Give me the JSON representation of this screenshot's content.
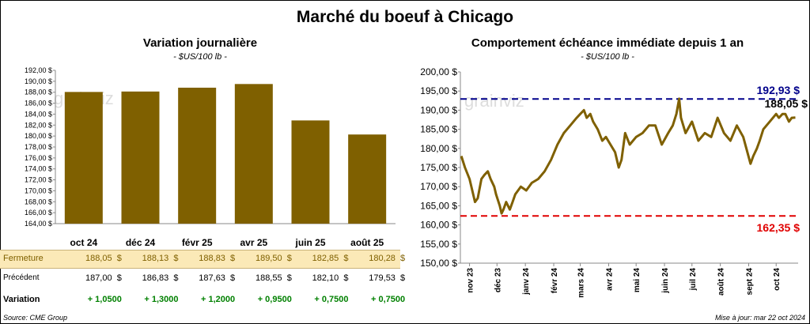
{
  "title": "Marché du boeuf à Chicago",
  "left": {
    "title": "Variation journalière",
    "unit": "- $US/100 lb -",
    "row_labels": {
      "close": "Fermeture",
      "previous": "Précédent",
      "change": "Variation"
    },
    "columns": [
      {
        "label": "oct 24",
        "close": "188,05",
        "previous": "187,00",
        "change": "+ 1,0500"
      },
      {
        "label": "déc 24",
        "close": "188,13",
        "previous": "186,83",
        "change": "+ 1,3000"
      },
      {
        "label": "févr 25",
        "close": "188,83",
        "previous": "187,63",
        "change": "+ 1,2000"
      },
      {
        "label": "avr 25",
        "close": "189,50",
        "previous": "188,55",
        "change": "+ 0,9500"
      },
      {
        "label": "juin 25",
        "close": "182,85",
        "previous": "182,10",
        "change": "+ 0,7500"
      },
      {
        "label": "août 25",
        "close": "180,28",
        "previous": "179,53",
        "change": "+ 0,7500"
      }
    ],
    "currency": "$",
    "source": "Source: CME Group"
  },
  "right": {
    "title": "Comportement  échéance immédiate depuis 1 an",
    "unit": "- $US/100 lb -",
    "update": "Mise à jour: mar 22 oct 2024",
    "max_label": "192,93 $",
    "min_label": "162,35 $",
    "last_label": "188,05 $"
  },
  "watermark": "grainviz",
  "colors": {
    "bar": "#7f6000",
    "line": "#7f6000",
    "max": "#00008b",
    "min": "#e00000",
    "highlight": "#fbe9b7",
    "positive": "#008000"
  },
  "chart_data": [
    {
      "type": "bar",
      "title": "Variation journalière",
      "categories": [
        "oct 24",
        "déc 24",
        "févr 25",
        "avr 25",
        "juin 25",
        "août 25"
      ],
      "values": [
        188.05,
        188.13,
        188.83,
        189.5,
        182.85,
        180.28
      ],
      "ylim": [
        164,
        192
      ],
      "yticks": [
        "164,00 $",
        "166,00 $",
        "168,00 $",
        "170,00 $",
        "172,00 $",
        "174,00 $",
        "176,00 $",
        "178,00 $",
        "180,00 $",
        "182,00 $",
        "184,00 $",
        "186,00 $",
        "188,00 $",
        "190,00 $",
        "192,00 $"
      ],
      "grid": false
    },
    {
      "type": "line",
      "title": "Comportement  échéance immédiate depuis 1 an",
      "ylim": [
        150,
        200
      ],
      "yticks": [
        "150,00 $",
        "155,00 $",
        "160,00 $",
        "165,00 $",
        "170,00 $",
        "175,00 $",
        "180,00 $",
        "185,00 $",
        "190,00 $",
        "195,00 $",
        "200,00 $"
      ],
      "xticks": [
        "nov 23",
        "déc 23",
        "janv 24",
        "févr 24",
        "mars 24",
        "avr 24",
        "mai 24",
        "juin 24",
        "juil 24",
        "août 24",
        "sept 24",
        "oct 24"
      ],
      "x": [
        "2023-10-23",
        "2023-10-27",
        "2023-11-01",
        "2023-11-03",
        "2023-11-07",
        "2023-11-10",
        "2023-11-14",
        "2023-11-17",
        "2023-11-21",
        "2023-11-24",
        "2023-11-28",
        "2023-11-30",
        "2023-12-04",
        "2023-12-06",
        "2023-12-08",
        "2023-12-11",
        "2023-12-13",
        "2023-12-15",
        "2023-12-18",
        "2023-12-21",
        "2023-12-27",
        "2024-01-02",
        "2024-01-08",
        "2024-01-15",
        "2024-01-22",
        "2024-01-29",
        "2024-02-05",
        "2024-02-12",
        "2024-02-19",
        "2024-02-26",
        "2024-03-01",
        "2024-03-05",
        "2024-03-08",
        "2024-03-12",
        "2024-03-15",
        "2024-03-20",
        "2024-03-25",
        "2024-03-29",
        "2024-04-03",
        "2024-04-08",
        "2024-04-12",
        "2024-04-15",
        "2024-04-19",
        "2024-04-24",
        "2024-05-01",
        "2024-05-08",
        "2024-05-15",
        "2024-05-22",
        "2024-05-29",
        "2024-06-05",
        "2024-06-10",
        "2024-06-14",
        "2024-06-17",
        "2024-06-19",
        "2024-06-24",
        "2024-07-01",
        "2024-07-08",
        "2024-07-15",
        "2024-07-22",
        "2024-07-29",
        "2024-08-05",
        "2024-08-12",
        "2024-08-19",
        "2024-08-26",
        "2024-09-03",
        "2024-09-06",
        "2024-09-10",
        "2024-09-13",
        "2024-09-17",
        "2024-09-24",
        "2024-10-01",
        "2024-10-04",
        "2024-10-08",
        "2024-10-11",
        "2024-10-15",
        "2024-10-18",
        "2024-10-22"
      ],
      "y": [
        178,
        175,
        172,
        170,
        166,
        167,
        172,
        173,
        174,
        172,
        170,
        168,
        165,
        163,
        164,
        166,
        165,
        164,
        166,
        168,
        170,
        169,
        171,
        172,
        174,
        177,
        181,
        184,
        186,
        188,
        189,
        190,
        188,
        189,
        187,
        185,
        182,
        183,
        181,
        179,
        175,
        177,
        184,
        181,
        183,
        184,
        186,
        186,
        181,
        184,
        186,
        189,
        193,
        188,
        184,
        187,
        182,
        184,
        183,
        188,
        184,
        182,
        186,
        183,
        176,
        178,
        180,
        182,
        185,
        187,
        189,
        188,
        189,
        189,
        187,
        188,
        188.05
      ],
      "max_line": 192.93,
      "min_line": 162.35,
      "grid": false
    }
  ]
}
